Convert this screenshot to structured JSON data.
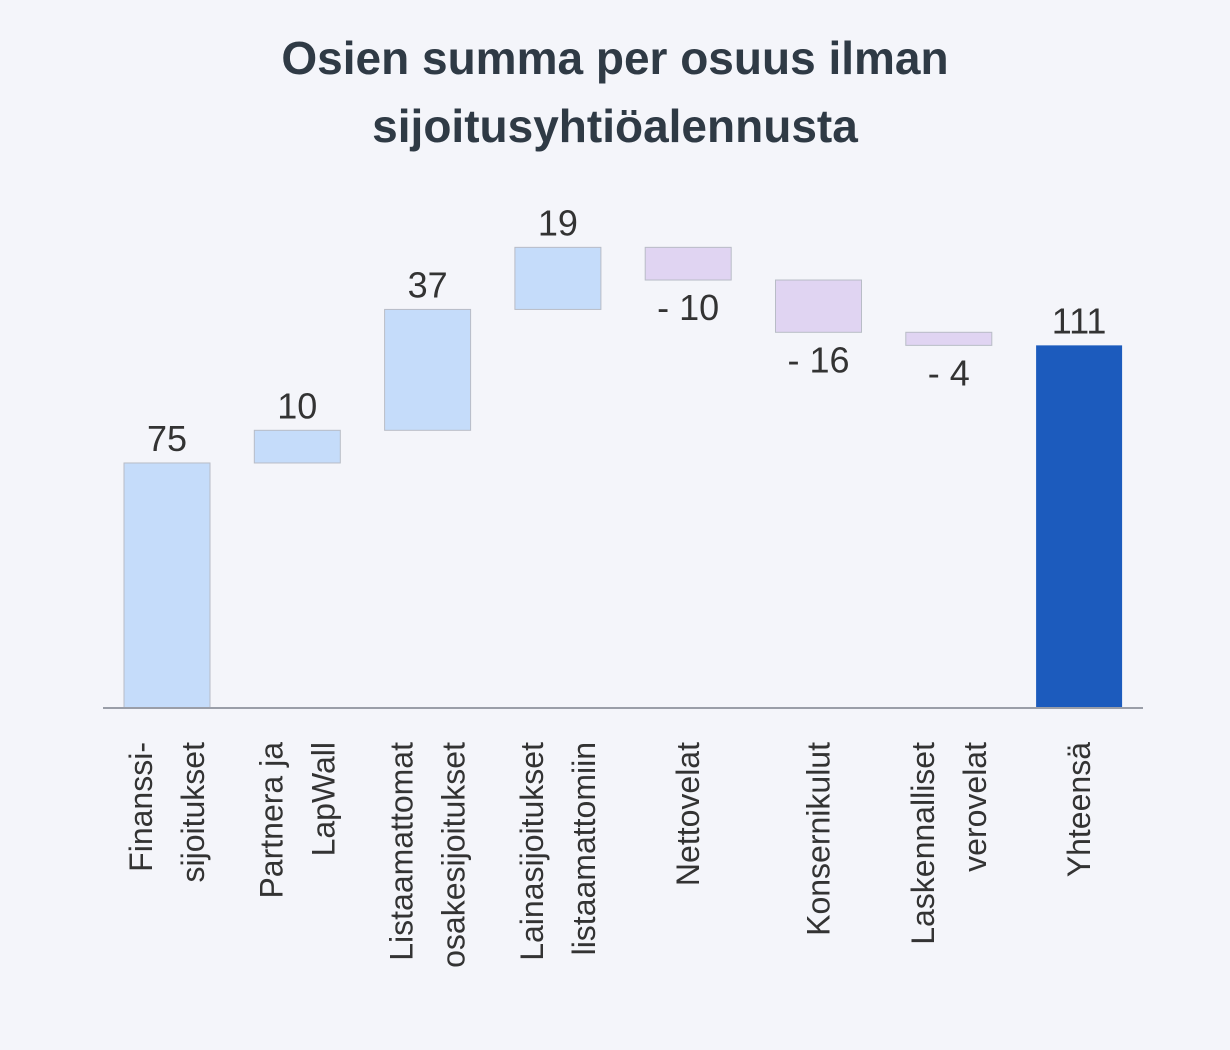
{
  "chart_data": {
    "type": "waterfall",
    "title": "Osien summa per osuus ilman sijoitusyhtiöalennusta",
    "categories": [
      [
        "Finanssi-",
        "sijoitukset"
      ],
      [
        "Partnera ja",
        "LapWall"
      ],
      [
        "Listaamattomat",
        "osakesijoitukset"
      ],
      [
        "Lainasijoitukset",
        "listaamattomiin"
      ],
      [
        "Nettovelat"
      ],
      [
        "Konsernikulut"
      ],
      [
        "Laskennalliset",
        "verovelat"
      ]
    ],
    "values": [
      75,
      10,
      37,
      19,
      -10,
      -16,
      -4
    ],
    "value_labels": [
      "75",
      "10",
      "37",
      "19",
      "- 10",
      "- 16",
      "- 4"
    ],
    "increase_color": "#c5dcfa",
    "decrease_color": "#e0d4f2",
    "total": {
      "category": [
        "Yhteensä"
      ],
      "value": 111,
      "color": "#1c5bbd"
    }
  }
}
